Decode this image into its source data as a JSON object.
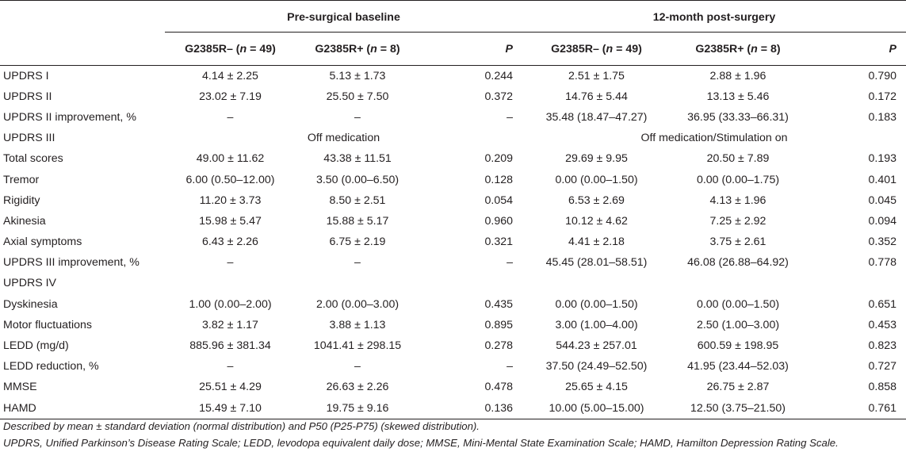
{
  "header": {
    "group_pre": "Pre-surgical baseline",
    "group_post": "12-month post-surgery",
    "col_neg_prefix": "G2385R– (",
    "col_neg_n": "n",
    "col_neg_suffix": " = 49)",
    "col_pos_prefix": "G2385R+ (",
    "col_pos_n": "n",
    "col_pos_suffix": " = 8)",
    "col_p": "P"
  },
  "rows": [
    {
      "label": "UPDRS I",
      "pre_neg": "4.14 ± 2.25",
      "pre_pos": "5.13 ± 1.73",
      "pre_p": "0.244",
      "post_neg": "2.51 ± 1.75",
      "post_pos": "2.88 ± 1.96",
      "post_p": "0.790"
    },
    {
      "label": "UPDRS II",
      "pre_neg": "23.02 ± 7.19",
      "pre_pos": "25.50 ± 7.50",
      "pre_p": "0.372",
      "post_neg": "14.76 ± 5.44",
      "post_pos": "13.13 ± 5.46",
      "post_p": "0.172"
    },
    {
      "label": "UPDRS II improvement, %",
      "pre_neg": "–",
      "pre_pos": "–",
      "pre_p": "–",
      "post_neg": "35.48 (18.47–47.27)",
      "post_pos": "36.95 (33.33–66.31)",
      "post_p": "0.183"
    },
    {
      "label": "UPDRS III",
      "pre_span": "Off medication",
      "post_span": "Off medication/Stimulation on"
    },
    {
      "label": "Total scores",
      "pre_neg": "49.00 ± 11.62",
      "pre_pos": "43.38 ± 11.51",
      "pre_p": "0.209",
      "post_neg": "29.69 ± 9.95",
      "post_pos": "20.50 ± 7.89",
      "post_p": "0.193"
    },
    {
      "label": "Tremor",
      "pre_neg": "6.00 (0.50–12.00)",
      "pre_pos": "3.50 (0.00–6.50)",
      "pre_p": "0.128",
      "post_neg": "0.00 (0.00–1.50)",
      "post_pos": "0.00 (0.00–1.75)",
      "post_p": "0.401"
    },
    {
      "label": "Rigidity",
      "pre_neg": "11.20 ± 3.73",
      "pre_pos": "8.50 ± 2.51",
      "pre_p": "0.054",
      "post_neg": "6.53 ± 2.69",
      "post_pos": "4.13 ± 1.96",
      "post_p": "0.045"
    },
    {
      "label": "Akinesia",
      "pre_neg": "15.98 ± 5.47",
      "pre_pos": "15.88 ± 5.17",
      "pre_p": "0.960",
      "post_neg": "10.12 ± 4.62",
      "post_pos": "7.25 ± 2.92",
      "post_p": "0.094"
    },
    {
      "label": "Axial symptoms",
      "pre_neg": "6.43 ± 2.26",
      "pre_pos": "6.75 ± 2.19",
      "pre_p": "0.321",
      "post_neg": "4.41 ± 2.18",
      "post_pos": "3.75 ± 2.61",
      "post_p": "0.352"
    },
    {
      "label": "UPDRS III improvement, %",
      "pre_neg": "–",
      "pre_pos": "–",
      "pre_p": "–",
      "post_neg": "45.45 (28.01–58.51)",
      "post_pos": "46.08 (26.88–64.92)",
      "post_p": "0.778"
    },
    {
      "label": "UPDRS IV"
    },
    {
      "label": "Dyskinesia",
      "pre_neg": "1.00 (0.00–2.00)",
      "pre_pos": "2.00 (0.00–3.00)",
      "pre_p": "0.435",
      "post_neg": "0.00 (0.00–1.50)",
      "post_pos": "0.00 (0.00–1.50)",
      "post_p": "0.651"
    },
    {
      "label": "Motor fluctuations",
      "pre_neg": "3.82 ± 1.17",
      "pre_pos": "3.88 ± 1.13",
      "pre_p": "0.895",
      "post_neg": "3.00 (1.00–4.00)",
      "post_pos": "2.50 (1.00–3.00)",
      "post_p": "0.453"
    },
    {
      "label": "LEDD (mg/d)",
      "pre_neg": "885.96 ± 381.34",
      "pre_pos": "1041.41 ± 298.15",
      "pre_p": "0.278",
      "post_neg": "544.23 ± 257.01",
      "post_pos": "600.59 ± 198.95",
      "post_p": "0.823"
    },
    {
      "label": "LEDD reduction, %",
      "pre_neg": "–",
      "pre_pos": "–",
      "pre_p": "–",
      "post_neg": "37.50 (24.49–52.50)",
      "post_pos": "41.95 (23.44–52.03)",
      "post_p": "0.727"
    },
    {
      "label": "MMSE",
      "pre_neg": "25.51 ± 4.29",
      "pre_pos": "26.63 ± 2.26",
      "pre_p": "0.478",
      "post_neg": "25.65 ± 4.15",
      "post_pos": "26.75 ± 2.87",
      "post_p": "0.858"
    },
    {
      "label": "HAMD",
      "pre_neg": "15.49 ± 7.10",
      "pre_pos": "19.75 ± 9.16",
      "pre_p": "0.136",
      "post_neg": "10.00 (5.00–15.00)",
      "post_pos": "12.50 (3.75–21.50)",
      "post_p": "0.761"
    }
  ],
  "footnotes": [
    "Described by mean ± standard deviation (normal distribution) and P50 (P25-P75) (skewed distribution).",
    "UPDRS, Unified Parkinson’s Disease Rating Scale; LEDD, levodopa equivalent daily dose; MMSE, Mini-Mental State Examination Scale; HAMD, Hamilton Depression Rating Scale."
  ]
}
